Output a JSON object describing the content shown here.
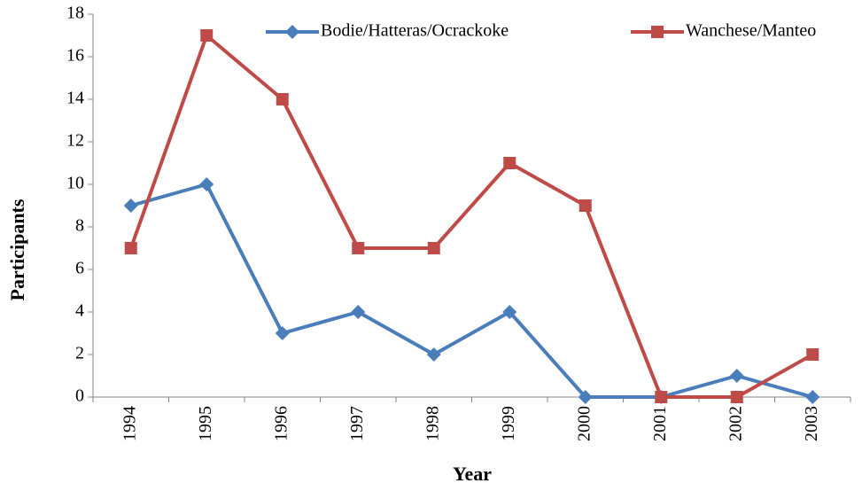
{
  "chart_data": {
    "type": "line",
    "x_label": "Year",
    "y_label": "Participants",
    "categories": [
      "1994",
      "1995",
      "1996",
      "1997",
      "1998",
      "1999",
      "2000",
      "2001",
      "2002",
      "2003"
    ],
    "series": [
      {
        "name": "Bodie/Hatteras/Ocrackoke",
        "color": "#4a7ebb",
        "marker": "diamond",
        "values": [
          9,
          10,
          3,
          4,
          2,
          4,
          0,
          0,
          1,
          0
        ]
      },
      {
        "name": "Wanchese/Manteo",
        "color": "#be4b48",
        "marker": "square",
        "values": [
          7,
          17,
          14,
          7,
          7,
          11,
          9,
          0,
          0,
          2
        ]
      }
    ],
    "ylim": [
      0,
      18
    ],
    "yticks": [
      0,
      2,
      4,
      6,
      8,
      10,
      12,
      14,
      16,
      18
    ],
    "legend": "top"
  }
}
